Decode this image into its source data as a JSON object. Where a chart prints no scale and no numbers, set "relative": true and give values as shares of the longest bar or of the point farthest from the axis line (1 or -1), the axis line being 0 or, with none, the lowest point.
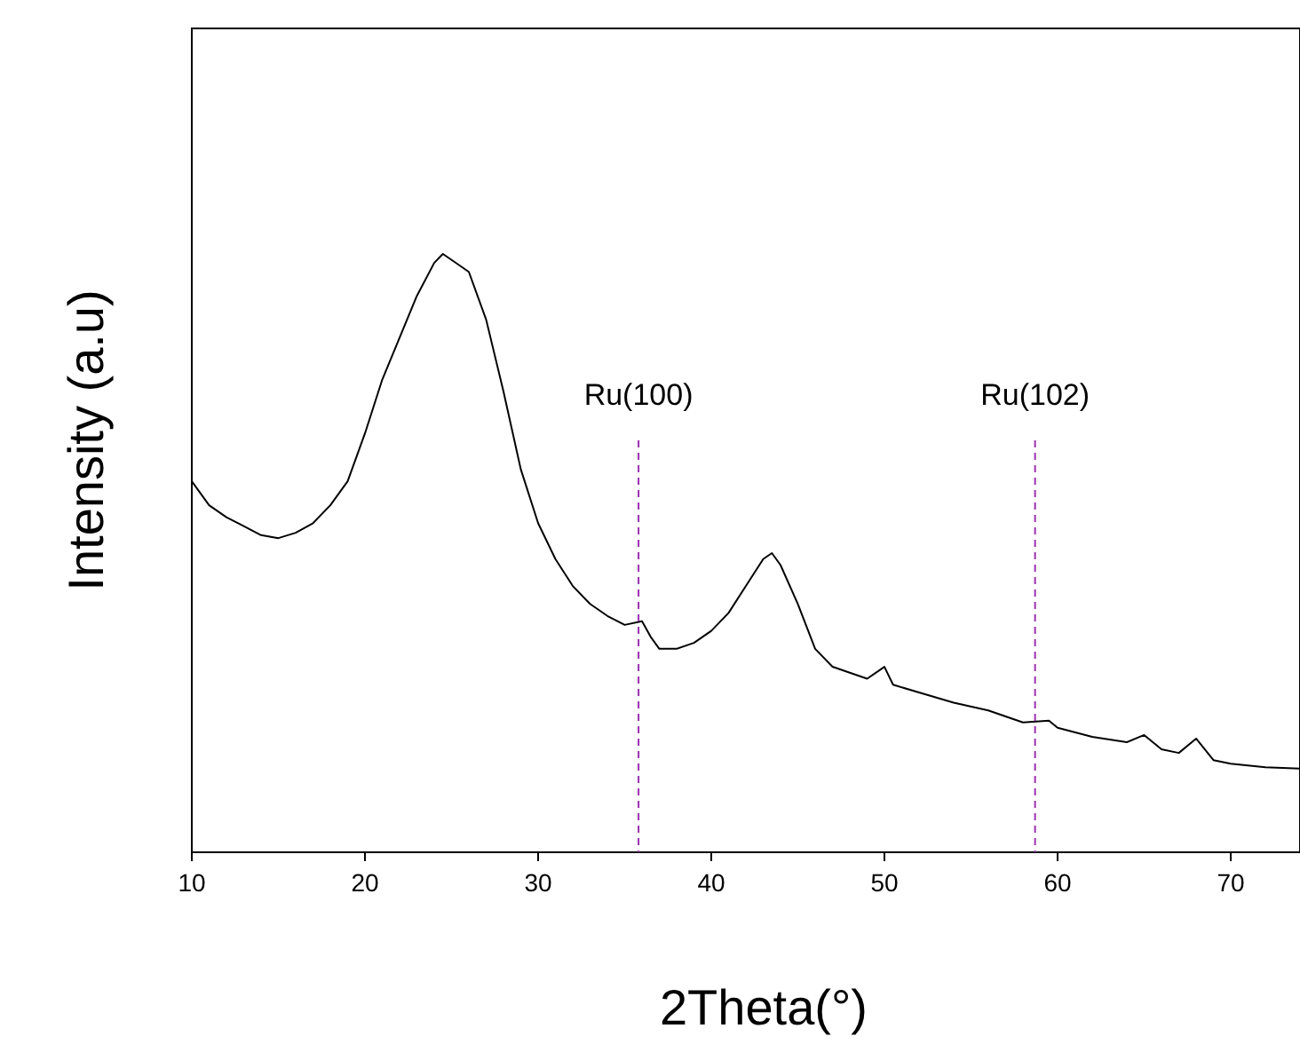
{
  "chart_data": {
    "type": "line",
    "xlabel": "2Theta(°)",
    "ylabel": "Intensity (a.u)",
    "relative": true,
    "xlim": [
      10,
      74
    ],
    "xticks": [
      10,
      20,
      30,
      40,
      50,
      60,
      70
    ],
    "grid": false,
    "marker": "none",
    "line_style": "solid",
    "series": [
      {
        "color": "#000000",
        "x": [
          10,
          11,
          12,
          13,
          14,
          15,
          16,
          17,
          18,
          19,
          20,
          21,
          22,
          23,
          24,
          24.5,
          25,
          26,
          27,
          28,
          29,
          30,
          31,
          32,
          33,
          34,
          35,
          36,
          36.5,
          37,
          38,
          39,
          40,
          41,
          42,
          43,
          43.5,
          44,
          45,
          46,
          47,
          48,
          49,
          50,
          50.5,
          52,
          54,
          56,
          58,
          59.5,
          60,
          62,
          64,
          65,
          66,
          67,
          68,
          69,
          70,
          72,
          74
        ],
        "values": [
          0.62,
          0.58,
          0.56,
          0.545,
          0.53,
          0.525,
          0.534,
          0.55,
          0.58,
          0.62,
          0.7,
          0.79,
          0.86,
          0.93,
          0.985,
          1.0,
          0.99,
          0.97,
          0.89,
          0.77,
          0.64,
          0.55,
          0.49,
          0.445,
          0.415,
          0.395,
          0.38,
          0.386,
          0.36,
          0.34,
          0.34,
          0.35,
          0.37,
          0.4,
          0.445,
          0.49,
          0.5,
          0.48,
          0.415,
          0.34,
          0.31,
          0.3,
          0.29,
          0.31,
          0.28,
          0.267,
          0.25,
          0.237,
          0.217,
          0.22,
          0.208,
          0.193,
          0.184,
          0.196,
          0.172,
          0.166,
          0.19,
          0.154,
          0.148,
          0.142,
          0.14
        ]
      }
    ],
    "ref_lines": [
      {
        "axis": "x",
        "value": 35.8,
        "label": "Ru(100)",
        "color": "#9b30b0",
        "line_style": "dashed"
      },
      {
        "axis": "x",
        "value": 58.7,
        "label": "Ru(102)",
        "color": "#9b30b0",
        "line_style": "dashed"
      }
    ]
  }
}
